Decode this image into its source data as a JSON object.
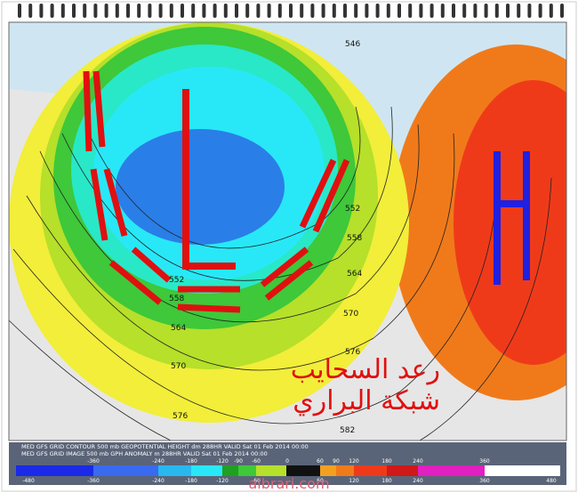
{
  "map": {
    "contour_labels": [
      "552",
      "558",
      "564",
      "570",
      "576",
      "582",
      "546",
      "552",
      "558",
      "564",
      "570",
      "576"
    ],
    "caption": [
      "رعد السحايب",
      "شبكة البراري"
    ],
    "legend": {
      "lines": [
        "MED GFS GRID CONTOUR 500 mb GEOPOTENTIAL HEIGHT dm 288HR VALID Sat 01 Feb 2014 00:00",
        "MED GFS GRID IMAGE 500 mb GPH ANOMALY m 288HR VALID Sat 01 Feb 2014 00:00"
      ],
      "colorbar_top": [
        "-360",
        "-240",
        "-180",
        "-120",
        "-90",
        "-60",
        "0",
        "60",
        "90",
        "120",
        "180",
        "240",
        "360"
      ],
      "colorbar_bottom": [
        "-480",
        "-360",
        "-240",
        "-180",
        "-120",
        "-60",
        "60",
        "120",
        "180",
        "240",
        "360",
        "480"
      ]
    },
    "watermark": "albrari.com"
  }
}
